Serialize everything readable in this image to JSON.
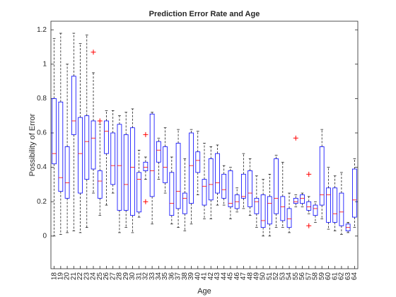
{
  "chart_data": {
    "type": "box",
    "title": "Prediction Error Rate and Age",
    "x_label": "Age",
    "y_label": "Possibility of Error",
    "categories": [
      "18",
      "19",
      "20",
      "21",
      "22",
      "23",
      "24",
      "25",
      "26",
      "27",
      "28",
      "29",
      "30",
      "31",
      "32",
      "33",
      "34",
      "35",
      "36",
      "37",
      "38",
      "39",
      "40",
      "41",
      "42",
      "43",
      "44",
      "45",
      "46",
      "47",
      "48",
      "49",
      "50",
      "51",
      "52",
      "53",
      "54",
      "55",
      "56",
      "57",
      "58",
      "59",
      "60",
      "61",
      "62",
      "63",
      "64"
    ],
    "low": [
      0.0,
      0.01,
      0.02,
      0.03,
      0.02,
      0.05,
      0.25,
      0.12,
      0.18,
      0.25,
      0.02,
      0.05,
      0.02,
      0.11,
      0.33,
      0.07,
      0.33,
      0.25,
      0.07,
      0.05,
      0.03,
      0.07,
      0.24,
      0.1,
      0.1,
      0.18,
      0.18,
      0.1,
      0.14,
      0.16,
      0.12,
      0.05,
      0.0,
      0.0,
      0.05,
      0.05,
      0.02,
      0.17,
      0.17,
      0.13,
      0.08,
      0.1,
      0.04,
      0.03,
      0.01,
      0.02,
      0.05
    ],
    "q1": [
      0.42,
      0.26,
      0.22,
      0.59,
      0.25,
      0.33,
      0.39,
      0.22,
      0.48,
      0.3,
      0.15,
      0.15,
      0.12,
      0.14,
      0.38,
      0.23,
      0.43,
      0.31,
      0.12,
      0.16,
      0.13,
      0.19,
      0.37,
      0.18,
      0.21,
      0.25,
      0.22,
      0.17,
      0.16,
      0.22,
      0.17,
      0.13,
      0.05,
      0.07,
      0.13,
      0.09,
      0.05,
      0.19,
      0.19,
      0.15,
      0.12,
      0.18,
      0.08,
      0.08,
      0.06,
      0.03,
      0.11
    ],
    "median": [
      0.48,
      0.34,
      0.31,
      0.67,
      0.48,
      0.55,
      0.57,
      0.32,
      0.61,
      0.41,
      0.41,
      0.3,
      0.4,
      0.33,
      0.4,
      0.38,
      0.5,
      0.4,
      0.19,
      0.26,
      0.22,
      0.41,
      0.44,
      0.29,
      0.3,
      0.31,
      0.27,
      0.19,
      0.2,
      0.23,
      0.25,
      0.2,
      0.09,
      0.19,
      0.22,
      0.17,
      0.1,
      0.2,
      0.22,
      0.17,
      0.16,
      0.24,
      0.24,
      0.13,
      0.14,
      0.05,
      0.21
    ],
    "q3": [
      0.8,
      0.78,
      0.52,
      0.93,
      0.69,
      0.7,
      0.67,
      0.38,
      0.67,
      0.6,
      0.65,
      0.59,
      0.63,
      0.37,
      0.43,
      0.71,
      0.55,
      0.52,
      0.37,
      0.54,
      0.25,
      0.6,
      0.49,
      0.33,
      0.45,
      0.48,
      0.36,
      0.38,
      0.24,
      0.36,
      0.38,
      0.22,
      0.24,
      0.23,
      0.45,
      0.23,
      0.16,
      0.22,
      0.24,
      0.2,
      0.18,
      0.52,
      0.28,
      0.28,
      0.25,
      0.07,
      0.39
    ],
    "high": [
      1.15,
      1.18,
      1.0,
      1.18,
      1.12,
      1.17,
      0.95,
      0.65,
      0.73,
      0.73,
      0.7,
      0.72,
      0.74,
      0.5,
      0.46,
      0.72,
      0.57,
      0.63,
      0.46,
      0.62,
      0.45,
      0.62,
      0.61,
      0.54,
      0.52,
      0.53,
      0.41,
      0.4,
      0.28,
      0.48,
      0.45,
      0.35,
      0.33,
      0.36,
      0.47,
      0.43,
      0.25,
      0.24,
      0.25,
      0.23,
      0.2,
      0.62,
      0.4,
      0.35,
      0.37,
      0.08,
      0.45
    ],
    "outliers": [
      [],
      [],
      [],
      [],
      [],
      [],
      [
        1.07
      ],
      [
        0.67
      ],
      [],
      [],
      [],
      [],
      [],
      [],
      [
        0.59,
        0.2
      ],
      [],
      [],
      [],
      [],
      [],
      [],
      [],
      [],
      [],
      [],
      [],
      [],
      [],
      [],
      [],
      [],
      [],
      [],
      [],
      [],
      [],
      [],
      [
        0.57
      ],
      [],
      [
        0.36,
        0.06
      ],
      [],
      [],
      [],
      [],
      [],
      [],
      []
    ],
    "box_color": "#0000ff",
    "median_color": "#ff0000",
    "whisker_color": "#000000",
    "outlier_color": "#ff0000",
    "ylim": [
      -0.19,
      1.25
    ],
    "yticks": [
      0,
      0.2,
      0.4,
      0.6,
      0.8,
      1,
      1.2
    ],
    "grid": false
  }
}
